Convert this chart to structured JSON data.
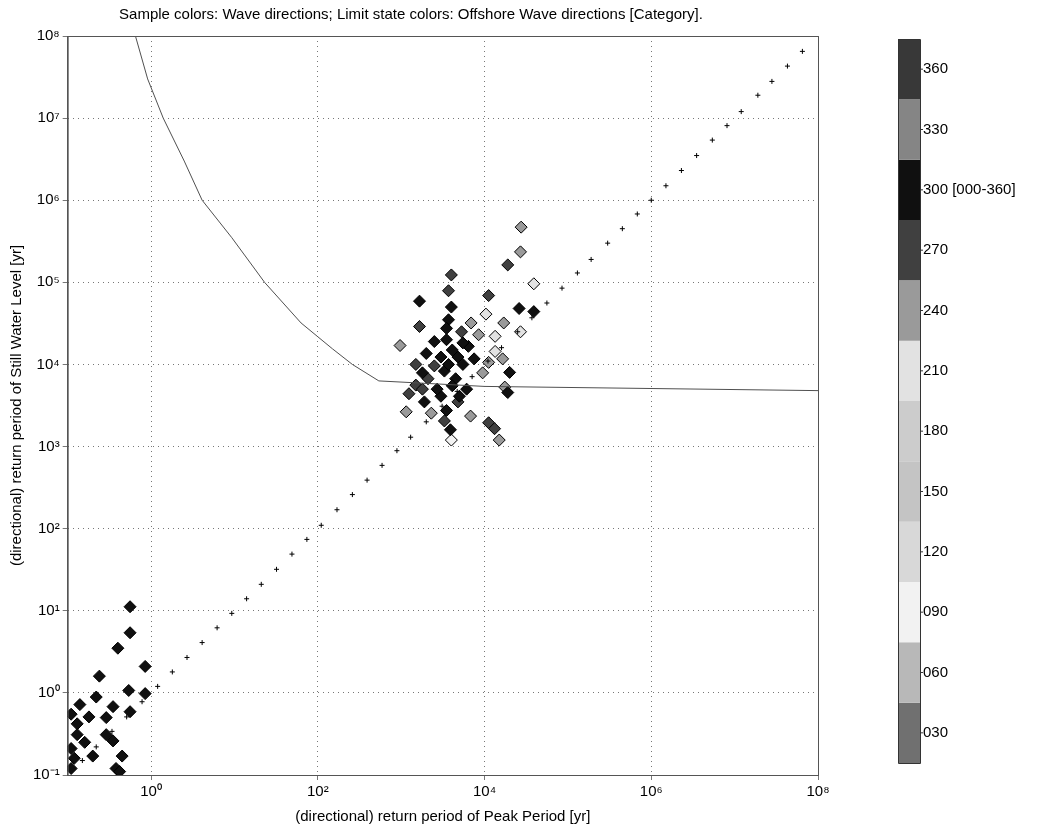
{
  "chart_data": {
    "type": "scatter",
    "title": "Sample colors: Wave directions; Limit state colors: Offshore Wave directions [Category].",
    "xlabel": "(directional) return period of Peak Period [yr]",
    "ylabel": "(directional) return period of Still Water Level [yr]",
    "log": "xy",
    "grid": true,
    "xlim": [
      0.1,
      100000000.0
    ],
    "ylim": [
      0.1,
      100000000.0
    ],
    "xticks": [
      {
        "value": 1,
        "label": "10⁰"
      },
      {
        "value": 100,
        "label": "10²"
      },
      {
        "value": 10000,
        "label": "10⁴"
      },
      {
        "value": 1000000,
        "label": "10⁶"
      },
      {
        "value": 100000000,
        "label": "10⁸"
      }
    ],
    "yticks": [
      {
        "value": 0.1,
        "label": "10⁻¹"
      },
      {
        "value": 1,
        "label": "10⁰"
      },
      {
        "value": 10,
        "label": "10¹"
      },
      {
        "value": 100,
        "label": "10²"
      },
      {
        "value": 1000,
        "label": "10³"
      },
      {
        "value": 10000,
        "label": "10⁴"
      },
      {
        "value": 100000,
        "label": "10⁵"
      },
      {
        "value": 1000000,
        "label": "10⁶"
      },
      {
        "value": 10000000,
        "label": "10⁷"
      },
      {
        "value": 100000000,
        "label": "10⁸"
      }
    ],
    "clim": [
      15,
      375
    ],
    "cticks": [
      {
        "value": 30,
        "label": "030"
      },
      {
        "value": 60,
        "label": "060"
      },
      {
        "value": 90,
        "label": "090"
      },
      {
        "value": 120,
        "label": "120"
      },
      {
        "value": 150,
        "label": "150"
      },
      {
        "value": 180,
        "label": "180"
      },
      {
        "value": 210,
        "label": "210"
      },
      {
        "value": 240,
        "label": "240"
      },
      {
        "value": 270,
        "label": "270"
      },
      {
        "value": 300,
        "label": "300 [000-360]"
      },
      {
        "value": 330,
        "label": "330"
      },
      {
        "value": 360,
        "label": "360"
      }
    ],
    "colors": [
      "#707070",
      "#b8b8b8",
      "#f2f2f2",
      "#d8d8d8",
      "#c4c4c4",
      "#cccccc",
      "#e2e2e2",
      "#9a9a9a",
      "#404040",
      "#101010",
      "#858585",
      "#383838"
    ],
    "series": [
      {
        "type": "line",
        "color": "#505050",
        "marker": "none",
        "line_style": "solid",
        "x": [
          0.65,
          0.91,
          1.4,
          2.5,
          4.1,
          9.3,
          23,
          63,
          150,
          260,
          540,
          10000,
          100000000
        ],
        "values": [
          100000000,
          30000000,
          10000000,
          3000000,
          1000000,
          350000,
          100000,
          32000,
          15500,
          10000,
          6300,
          5400,
          4800
        ]
      },
      {
        "type": "scatter",
        "color": "#000000",
        "marker": "cross",
        "x": [
          0.15,
          0.22,
          0.34,
          0.51,
          0.78,
          1.2,
          1.8,
          2.7,
          4.1,
          6.2,
          9.3,
          14,
          21,
          32,
          49,
          74,
          110,
          170,
          260,
          390,
          590,
          890,
          1300,
          2000,
          3100,
          4700,
          7100,
          11000,
          16000,
          25000,
          37000,
          56000,
          85000,
          130000,
          190000,
          300000,
          450000,
          680000,
          1000000,
          1500000,
          2300000,
          3500000,
          5400000,
          8100000,
          12000000,
          19000000,
          28000000,
          43000000,
          65000000
        ],
        "values": [
          0.15,
          0.22,
          0.34,
          0.51,
          0.78,
          1.2,
          1.8,
          2.7,
          4.1,
          6.2,
          9.3,
          14,
          21,
          32,
          49,
          74,
          110,
          170,
          260,
          390,
          590,
          890,
          1300,
          2000,
          3100,
          4700,
          7100,
          11000,
          16000,
          25000,
          37000,
          56000,
          85000,
          130000,
          190000,
          300000,
          450000,
          680000,
          1000000,
          1500000,
          2300000,
          3500000,
          5400000,
          8100000,
          12000000,
          19000000,
          28000000,
          43000000,
          65000000
        ]
      },
      {
        "type": "scatter",
        "color": "#000000",
        "marker": "diamond",
        "x": [
          0.56,
          0.56,
          0.4,
          0.85,
          0.24,
          0.54,
          0.85,
          0.22,
          0.14,
          0.35,
          0.56,
          0.11,
          0.18,
          0.29,
          0.13,
          0.13,
          0.29,
          0.35,
          0.16,
          0.11,
          0.2,
          0.45,
          0.12,
          0.38,
          0.11,
          0.42,
          27500,
          27000,
          19000,
          4000,
          3700,
          1660,
          11200,
          39000,
          26000,
          39000,
          4000,
          10400,
          1660,
          3700,
          6900,
          17000,
          27000,
          5300,
          8500,
          13400,
          2500,
          970,
          6400,
          13400,
          16500,
          2000,
          3500,
          1500,
          4800,
          7500,
          11200,
          20000,
          3300,
          4500,
          2100,
          9500,
          17500,
          19000,
          1500,
          1240,
          1900,
          3000,
          4800,
          1150,
          2300,
          6800,
          3500,
          3300,
          11200,
          13200,
          4000,
          15000,
          3900,
          3500,
          5500,
          4100,
          3000,
          5500,
          3700,
          2500,
          4100,
          6100,
          1800,
          2700,
          5000,
          1800
        ],
        "values": [
          11.2,
          5.4,
          3.5,
          2.1,
          1.6,
          1.07,
          0.98,
          0.89,
          0.72,
          0.68,
          0.59,
          0.55,
          0.51,
          0.5,
          0.42,
          0.31,
          0.31,
          0.26,
          0.25,
          0.21,
          0.17,
          0.17,
          0.16,
          0.12,
          0.12,
          0.11,
          470000,
          235000,
          163000,
          123000,
          79000,
          59000,
          69000,
          96000,
          48000,
          44000,
          50000,
          41000,
          29000,
          35000,
          32000,
          32000,
          25000,
          25000,
          23000,
          22000,
          19000,
          17000,
          16600,
          14400,
          11700,
          13600,
          20000,
          10000,
          12300,
          11700,
          10600,
          8000,
          8300,
          6700,
          6700,
          7900,
          5300,
          4550,
          5600,
          4400,
          3500,
          4100,
          3500,
          2650,
          2550,
          2350,
          2750,
          2050,
          1950,
          1650,
          1200,
          1200,
          1600,
          27500,
          18300,
          15000,
          12300,
          10000,
          10000,
          9600,
          5500,
          5000,
          5000,
          5000,
          4100,
          7900
        ],
        "cvalues": [
          300,
          300,
          300,
          300,
          300,
          300,
          300,
          300,
          300,
          300,
          300,
          300,
          300,
          300,
          300,
          300,
          300,
          300,
          300,
          300,
          300,
          300,
          300,
          300,
          300,
          300,
          240,
          240,
          270,
          270,
          270,
          300,
          270,
          210,
          300,
          300,
          300,
          210,
          270,
          300,
          240,
          240,
          210,
          270,
          240,
          210,
          300,
          240,
          300,
          210,
          240,
          300,
          300,
          270,
          300,
          300,
          240,
          300,
          300,
          300,
          270,
          240,
          240,
          300,
          270,
          270,
          300,
          300,
          270,
          240,
          240,
          240,
          300,
          270,
          270,
          270,
          90,
          240,
          300,
          300,
          300,
          300,
          300,
          300,
          300,
          270,
          300,
          300,
          270,
          300,
          300,
          300
        ]
      }
    ]
  }
}
